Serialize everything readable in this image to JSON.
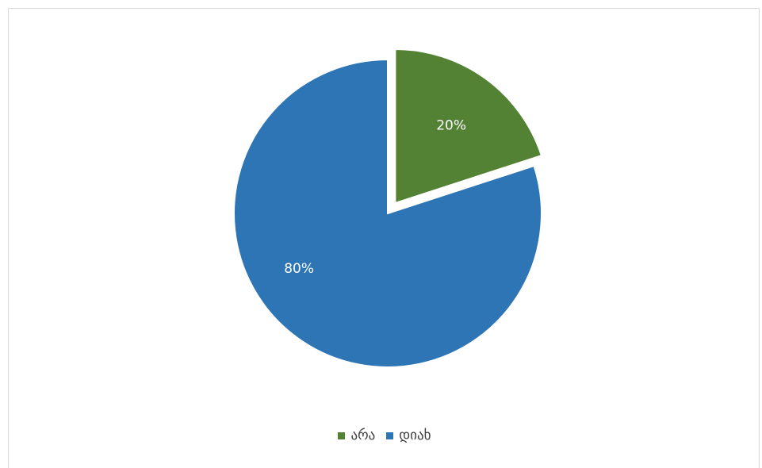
{
  "chart_data": {
    "type": "pie",
    "title": "",
    "slices": [
      {
        "name": "არა",
        "value": 20,
        "label": "20%",
        "color": "#548235",
        "exploded": true
      },
      {
        "name": "დიახ",
        "value": 80,
        "label": "80%",
        "color": "#2e75b6",
        "exploded": false
      }
    ],
    "legend_placement": "bottom",
    "start_angle_deg": 0
  }
}
